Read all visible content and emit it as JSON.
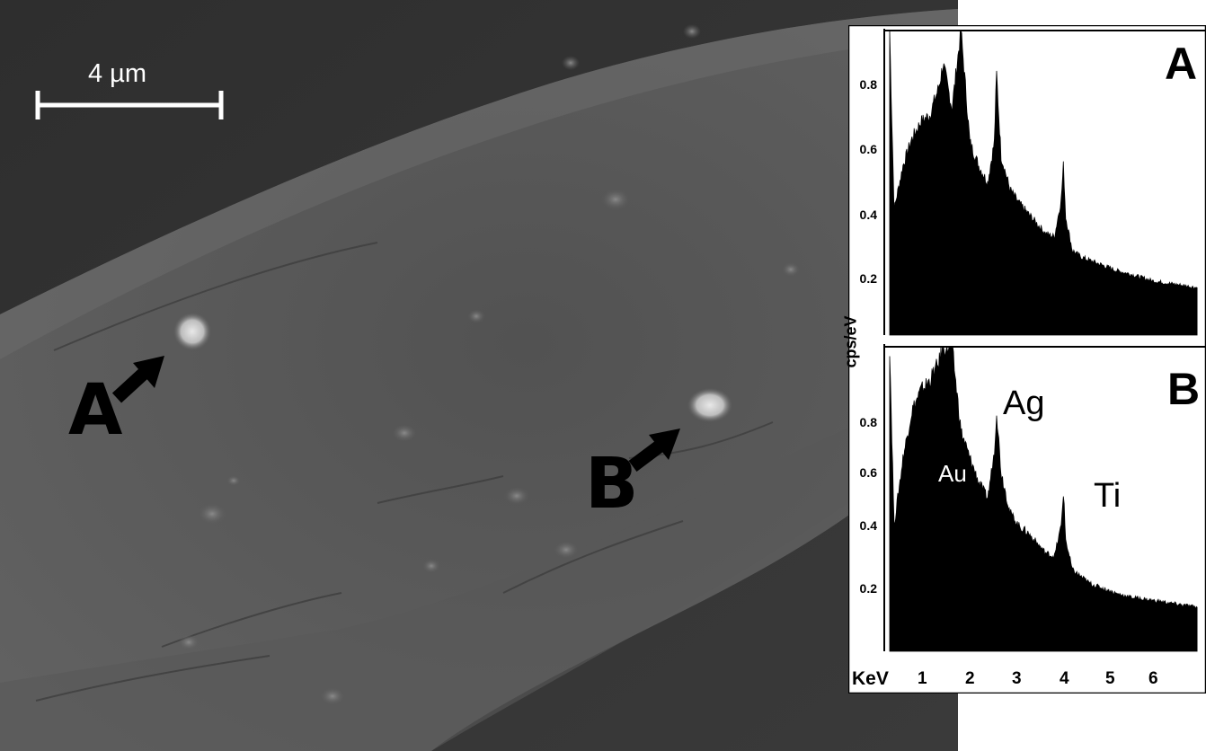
{
  "scale_bar": {
    "label": "4 µm"
  },
  "points": {
    "a_label": "A",
    "b_label": "B"
  },
  "spectrum": {
    "y_unit": "cps/eV",
    "x_unit": "KeV",
    "y_ticks": [
      "0.2",
      "0.4",
      "0.6",
      "0.8"
    ],
    "x_ticks": [
      "1",
      "2",
      "3",
      "4",
      "5",
      "6"
    ],
    "panels": [
      {
        "id": "A",
        "label": "A"
      },
      {
        "id": "B",
        "label": "B",
        "peaks": [
          "Au",
          "Ag",
          "Ti"
        ]
      }
    ]
  },
  "chart_data": [
    {
      "type": "area",
      "title": "A",
      "xlabel": "KeV",
      "ylabel": "cps/eV",
      "xlim": [
        0.5,
        7.7
      ],
      "ylim": [
        0.05,
        0.95
      ],
      "x": [
        0.6,
        0.7,
        0.9,
        1.1,
        1.3,
        1.5,
        1.7,
        1.8,
        2.0,
        2.2,
        2.4,
        2.6,
        2.8,
        2.95,
        3.0,
        3.1,
        3.3,
        3.5,
        3.7,
        3.9,
        4.1,
        4.3,
        4.45,
        4.5,
        4.55,
        4.7,
        4.9,
        5.1,
        5.3,
        5.5,
        5.7,
        6.0,
        6.5,
        7.0,
        7.5
      ],
      "values": [
        0.95,
        0.42,
        0.55,
        0.63,
        0.68,
        0.7,
        0.78,
        0.85,
        0.72,
        0.95,
        0.62,
        0.55,
        0.5,
        0.62,
        0.82,
        0.58,
        0.48,
        0.44,
        0.41,
        0.38,
        0.35,
        0.34,
        0.45,
        0.55,
        0.4,
        0.3,
        0.28,
        0.27,
        0.26,
        0.25,
        0.24,
        0.23,
        0.21,
        0.2,
        0.19
      ]
    },
    {
      "type": "area",
      "title": "B",
      "xlabel": "KeV",
      "ylabel": "cps/eV",
      "xlim": [
        0.5,
        7.7
      ],
      "ylim": [
        0.05,
        0.95
      ],
      "annotations": [
        "Au",
        "Ag",
        "Ti"
      ],
      "x": [
        0.6,
        0.7,
        0.9,
        1.1,
        1.3,
        1.5,
        1.7,
        1.8,
        2.0,
        2.2,
        2.4,
        2.6,
        2.8,
        2.95,
        3.0,
        3.1,
        3.3,
        3.5,
        3.7,
        3.9,
        4.1,
        4.3,
        4.45,
        4.5,
        4.55,
        4.7,
        4.9,
        5.1,
        5.3,
        5.5,
        5.7,
        6.0,
        6.5,
        7.0,
        7.5
      ],
      "values": [
        0.95,
        0.42,
        0.62,
        0.76,
        0.82,
        0.85,
        0.9,
        0.95,
        0.95,
        0.7,
        0.62,
        0.55,
        0.5,
        0.64,
        0.76,
        0.58,
        0.46,
        0.42,
        0.4,
        0.37,
        0.34,
        0.33,
        0.42,
        0.52,
        0.38,
        0.29,
        0.27,
        0.25,
        0.24,
        0.23,
        0.22,
        0.21,
        0.2,
        0.19,
        0.18
      ]
    }
  ]
}
